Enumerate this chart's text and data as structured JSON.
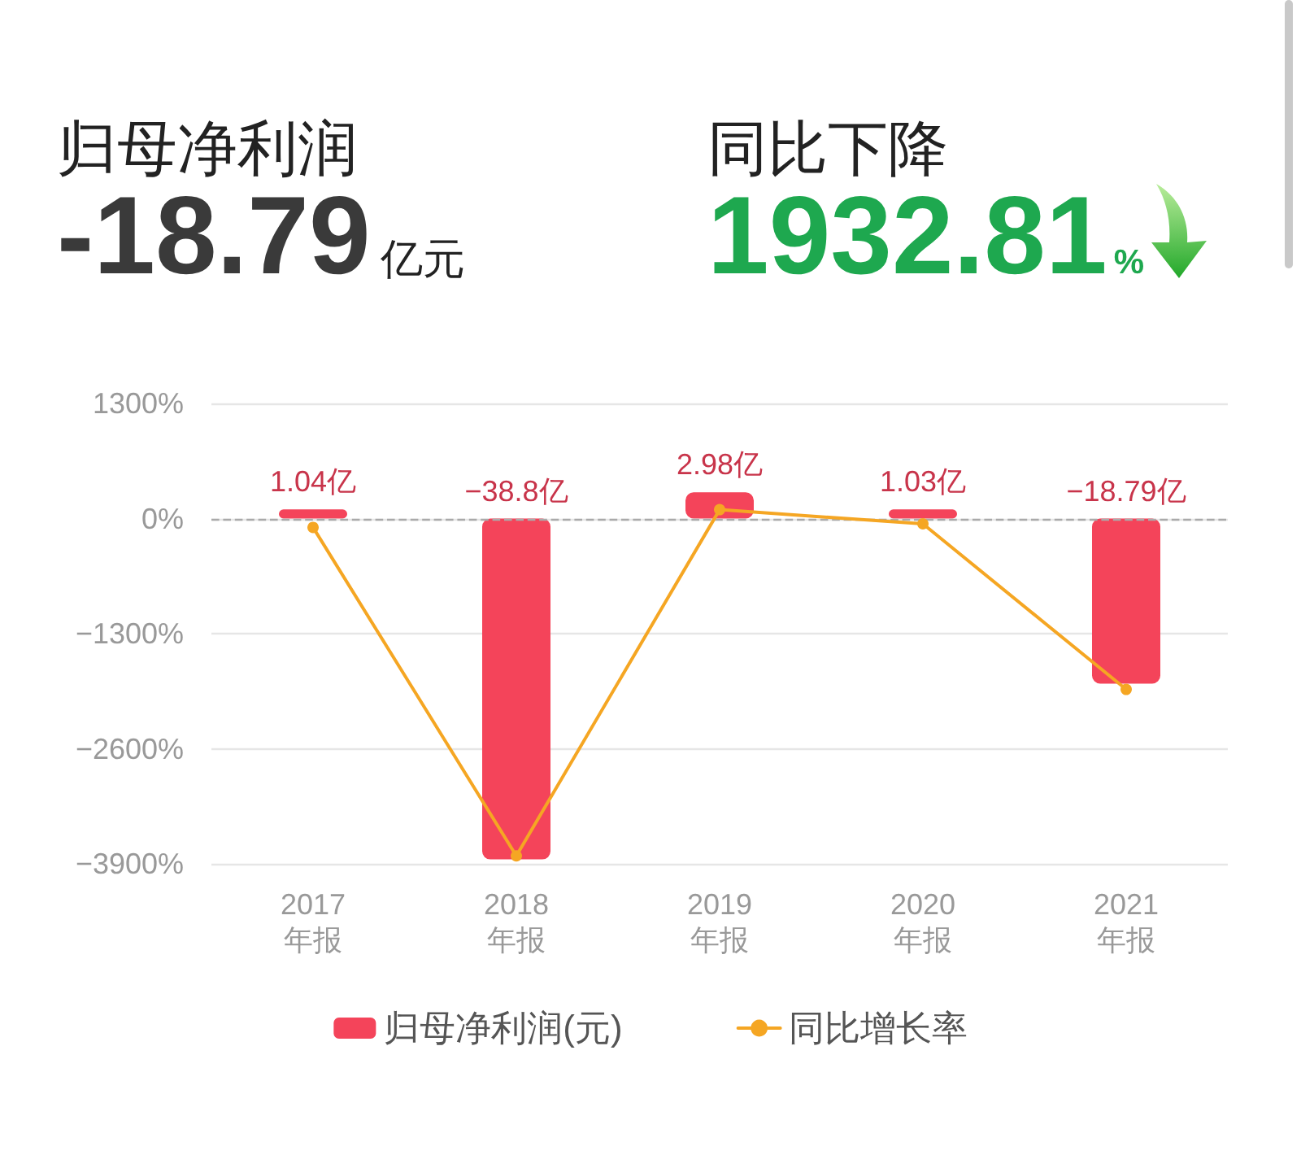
{
  "chart_data": {
    "type": "bar",
    "annotations": [
      "归母净利润",
      "-18.79",
      "亿元",
      "同比下降",
      "1932.81",
      "%"
    ],
    "categories": [
      "2017\n年报",
      "2018\n年报",
      "2019\n年报",
      "2020\n年报",
      "2021\n年报"
    ],
    "series": [
      {
        "name": "归母净利润(元)",
        "axis": "y2",
        "color": "#f4445a",
        "values": [
          1.04,
          -38.8,
          2.98,
          1.03,
          -18.79
        ],
        "value_labels": [
          "1.04亿",
          "−38.8亿",
          "2.98亿",
          "1.03亿",
          "−18.79亿"
        ]
      },
      {
        "name": "同比增长率",
        "type": "line",
        "color": "#f5a623",
        "values": [
          -100,
          -3810,
          100,
          -60,
          -1930
        ]
      }
    ],
    "ylim": [
      -3900,
      1300
    ],
    "yticks": [
      {
        "value": -3900,
        "label": "−3900%"
      },
      {
        "value": -2600,
        "label": "−2600%"
      },
      {
        "value": -1300,
        "label": "−1300%"
      },
      {
        "value": 0,
        "label": "0%"
      },
      {
        "value": 1300,
        "label": "1300%"
      }
    ],
    "y2lim": [
      -39.3,
      13.1
    ],
    "grid": "y",
    "legend": "bottom",
    "marker": "circle",
    "ref_lines": [
      {
        "axis": "y",
        "value": 0,
        "color": "#aaaaaa",
        "line_style": "dashed"
      }
    ]
  }
}
